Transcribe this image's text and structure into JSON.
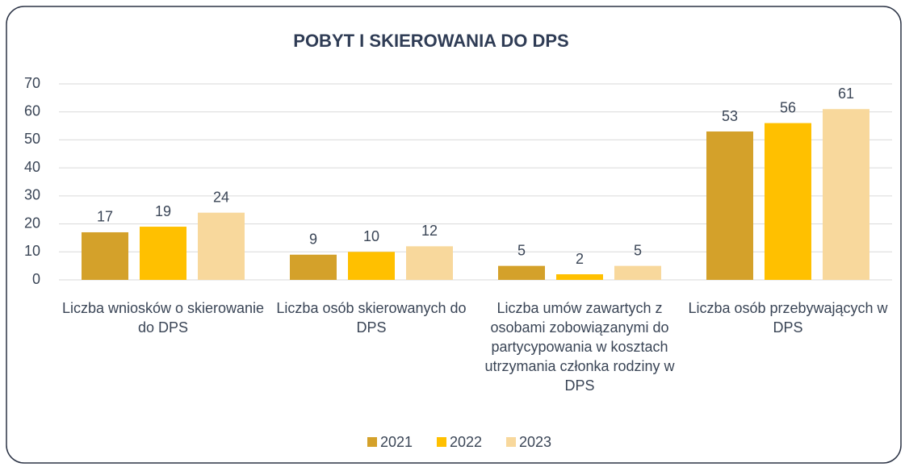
{
  "chart_data": {
    "type": "bar",
    "title": "POBYT I SKIEROWANIA DO DPS",
    "categories": [
      "Liczba wniosków o skierowanie do DPS",
      "Liczba osób skierowanych do DPS",
      "Liczba umów zawartych z osobami zobowiązanymi do partycypowania w kosztach utrzymania członka rodziny w DPS",
      "Liczba osób przebywających w DPS"
    ],
    "series": [
      {
        "name": "2021",
        "color": "#d4a12a",
        "values": [
          17,
          9,
          5,
          53
        ]
      },
      {
        "name": "2022",
        "color": "#ffc000",
        "values": [
          19,
          10,
          2,
          56
        ]
      },
      {
        "name": "2023",
        "color": "#f8d89c",
        "values": [
          24,
          12,
          5,
          61
        ]
      }
    ],
    "ylim": [
      0,
      70
    ],
    "yticks": [
      0,
      10,
      20,
      30,
      40,
      50,
      60,
      70
    ],
    "grid": true,
    "legend": "bottom"
  }
}
